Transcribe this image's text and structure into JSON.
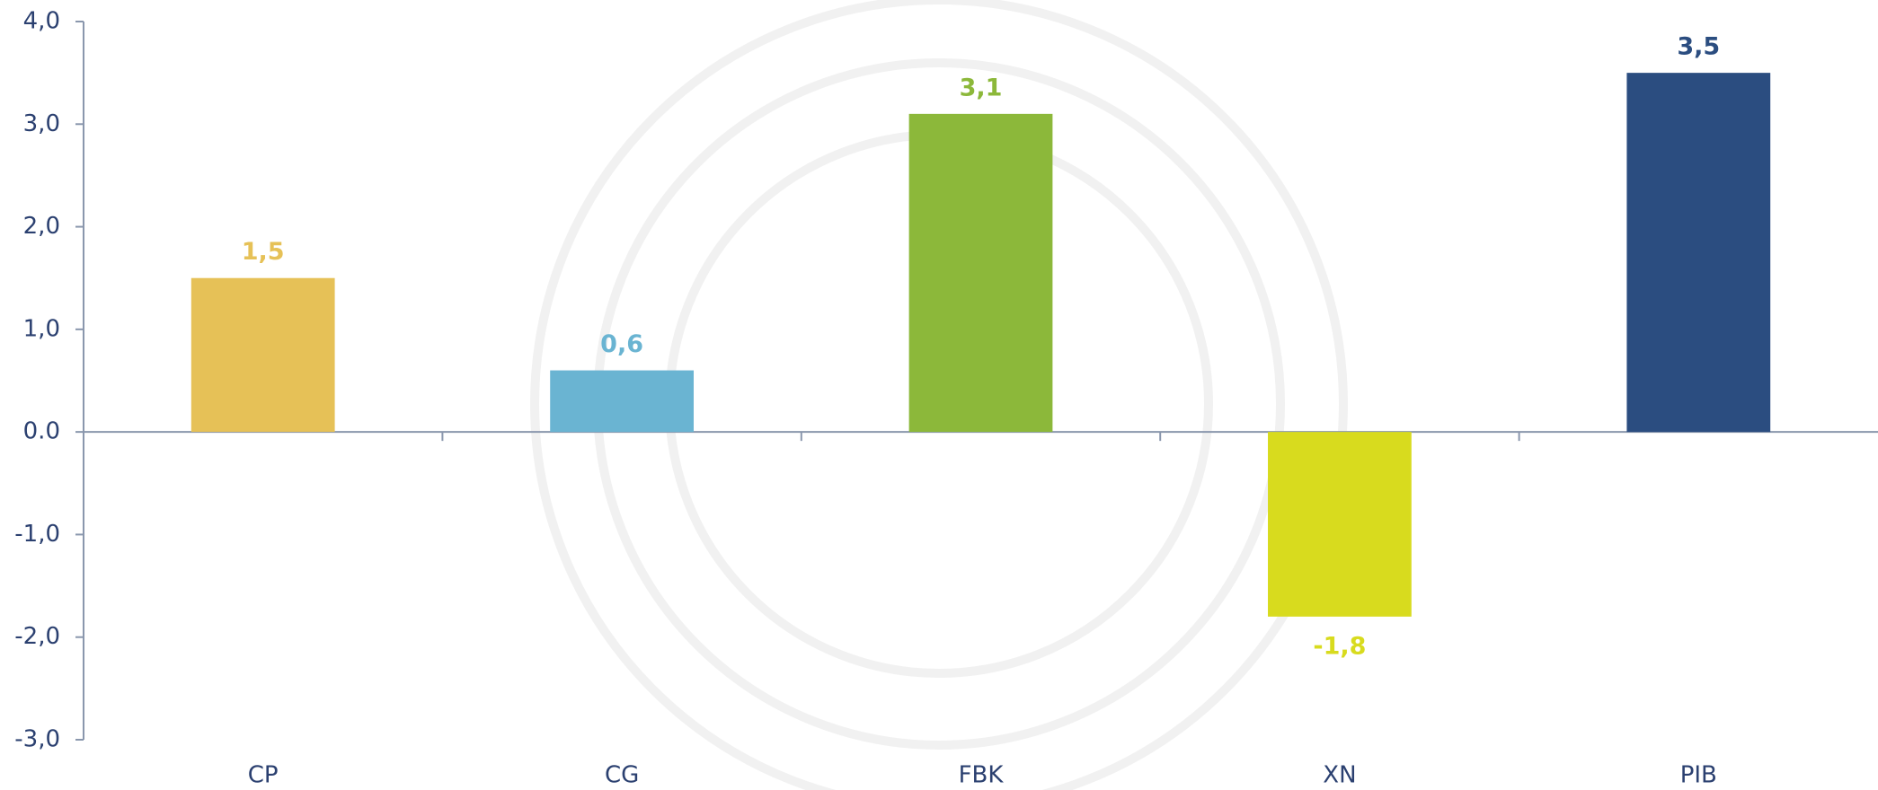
{
  "chart_data": {
    "type": "bar",
    "categories": [
      "CP",
      "CG",
      "FBK",
      "XN",
      "PIB"
    ],
    "values": [
      1.5,
      0.6,
      3.1,
      -1.8,
      3.5
    ],
    "value_labels": [
      "1,5",
      "0,6",
      "3,1",
      "-1,8",
      "3,5"
    ],
    "colors": [
      "#e6c157",
      "#6ab4d2",
      "#8cb83a",
      "#d8db1e",
      "#2b4d80"
    ],
    "ylim": [
      -3,
      4
    ],
    "yticks": [
      {
        "value": 4,
        "label": "4,0"
      },
      {
        "value": 3,
        "label": "3,0"
      },
      {
        "value": 2,
        "label": "2,0"
      },
      {
        "value": 1,
        "label": "1,0"
      },
      {
        "value": 0,
        "label": "0.0"
      },
      {
        "value": -1,
        "label": "-1,0"
      },
      {
        "value": -2,
        "label": "-2,0"
      },
      {
        "value": -3,
        "label": "-3,0"
      }
    ],
    "grid": false
  }
}
